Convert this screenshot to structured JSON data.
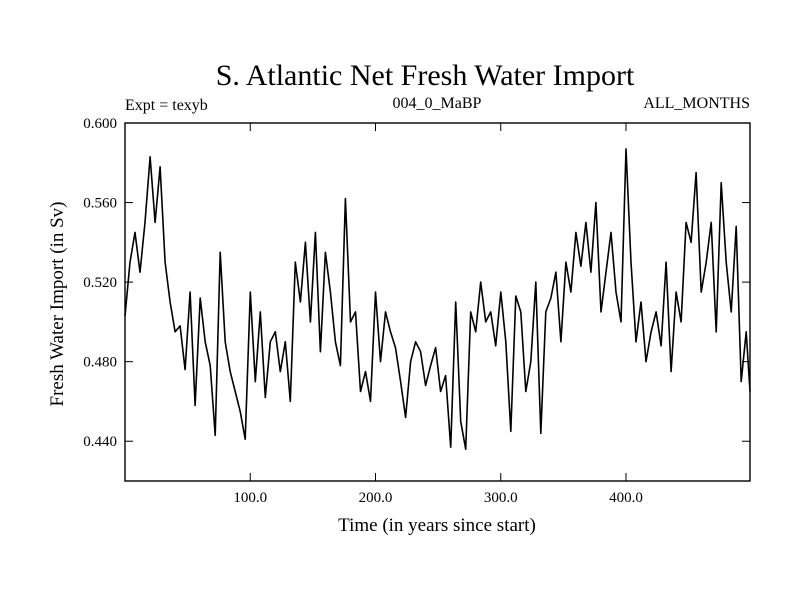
{
  "chart_data": {
    "type": "line",
    "title": "S. Atlantic Net Fresh Water Import",
    "subtitle_left": "Expt = texyb",
    "subtitle_center": "004_0_MaBP",
    "subtitle_right": "ALL_MONTHS",
    "xlabel": "Time (in years since start)",
    "ylabel": "Fresh Water Import (in Sv)",
    "xlim": [
      0,
      499
    ],
    "ylim": [
      0.42,
      0.6
    ],
    "xticks": [
      100,
      200,
      300,
      400
    ],
    "xtick_labels": [
      "100.0",
      "200.0",
      "300.0",
      "400.0"
    ],
    "yticks": [
      0.44,
      0.48,
      0.52,
      0.56,
      0.6
    ],
    "ytick_labels": [
      "0.440",
      "0.480",
      "0.520",
      "0.560",
      "0.600"
    ],
    "grid": false,
    "series": [
      {
        "color": "#000000",
        "x": [
          0,
          4,
          8,
          12,
          16,
          20,
          24,
          28,
          32,
          36,
          40,
          44,
          48,
          52,
          56,
          60,
          64,
          68,
          72,
          76,
          80,
          84,
          88,
          92,
          96,
          100,
          104,
          108,
          112,
          116,
          120,
          124,
          128,
          132,
          136,
          140,
          144,
          148,
          152,
          156,
          160,
          164,
          168,
          172,
          176,
          180,
          184,
          188,
          192,
          196,
          200,
          204,
          208,
          212,
          216,
          220,
          224,
          228,
          232,
          236,
          240,
          244,
          248,
          252,
          256,
          260,
          264,
          268,
          272,
          276,
          280,
          284,
          288,
          292,
          296,
          300,
          304,
          308,
          312,
          316,
          320,
          324,
          328,
          332,
          336,
          340,
          344,
          348,
          352,
          356,
          360,
          364,
          368,
          372,
          376,
          380,
          384,
          388,
          392,
          396,
          400,
          404,
          408,
          412,
          416,
          420,
          424,
          428,
          432,
          436,
          440,
          444,
          448,
          452,
          456,
          460,
          464,
          468,
          472,
          476,
          480,
          484,
          488,
          492,
          496,
          499
        ],
        "y": [
          0.503,
          0.53,
          0.545,
          0.525,
          0.55,
          0.583,
          0.55,
          0.578,
          0.53,
          0.51,
          0.495,
          0.498,
          0.476,
          0.515,
          0.458,
          0.512,
          0.49,
          0.478,
          0.443,
          0.535,
          0.49,
          0.475,
          0.465,
          0.455,
          0.441,
          0.515,
          0.47,
          0.505,
          0.462,
          0.49,
          0.495,
          0.475,
          0.49,
          0.46,
          0.53,
          0.51,
          0.54,
          0.5,
          0.545,
          0.485,
          0.535,
          0.515,
          0.49,
          0.478,
          0.562,
          0.5,
          0.505,
          0.465,
          0.475,
          0.46,
          0.515,
          0.48,
          0.505,
          0.495,
          0.487,
          0.47,
          0.452,
          0.48,
          0.49,
          0.485,
          0.468,
          0.478,
          0.487,
          0.465,
          0.473,
          0.437,
          0.51,
          0.45,
          0.436,
          0.505,
          0.495,
          0.52,
          0.5,
          0.505,
          0.488,
          0.515,
          0.49,
          0.445,
          0.513,
          0.505,
          0.465,
          0.48,
          0.52,
          0.444,
          0.505,
          0.512,
          0.525,
          0.49,
          0.53,
          0.515,
          0.545,
          0.528,
          0.55,
          0.525,
          0.56,
          0.505,
          0.525,
          0.545,
          0.515,
          0.5,
          0.587,
          0.53,
          0.49,
          0.51,
          0.48,
          0.495,
          0.505,
          0.488,
          0.53,
          0.475,
          0.515,
          0.5,
          0.55,
          0.54,
          0.575,
          0.515,
          0.53,
          0.55,
          0.495,
          0.57,
          0.53,
          0.505,
          0.548,
          0.47,
          0.495,
          0.465
        ]
      }
    ]
  }
}
